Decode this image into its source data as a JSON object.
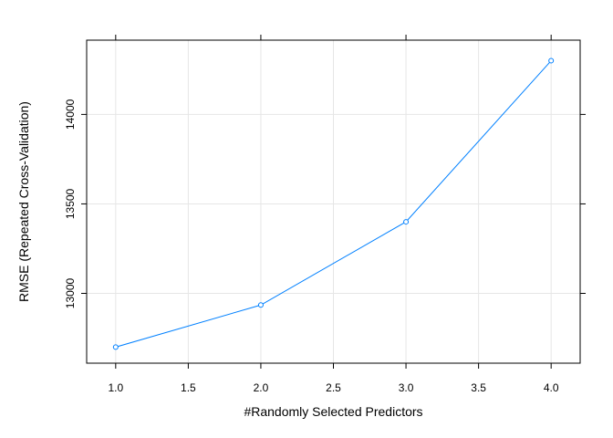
{
  "chart_data": {
    "type": "line",
    "title": "",
    "xlabel": "#Randomly Selected Predictors",
    "ylabel": "RMSE (Repeated Cross-Validation)",
    "xlim": [
      0.8,
      4.2
    ],
    "ylim": [
      12610,
      14415
    ],
    "x_ticks": [
      1.0,
      1.5,
      2.0,
      2.5,
      3.0,
      3.5,
      4.0
    ],
    "x_tick_labels": [
      "1.0",
      "1.5",
      "2.0",
      "2.5",
      "3.0",
      "3.5",
      "4.0"
    ],
    "y_ticks": [
      13000,
      13500,
      14000
    ],
    "y_tick_labels": [
      "13000",
      "13500",
      "14000"
    ],
    "grid": true,
    "series": [
      {
        "x": [
          1,
          2,
          3,
          4
        ],
        "values": [
          12700,
          12935,
          13400,
          14300
        ],
        "color": "#0080ff",
        "marker": "circle-open"
      }
    ],
    "colors": {
      "line": "#0080ff",
      "grid": "#e6e6e6",
      "frame": "#000000"
    }
  }
}
